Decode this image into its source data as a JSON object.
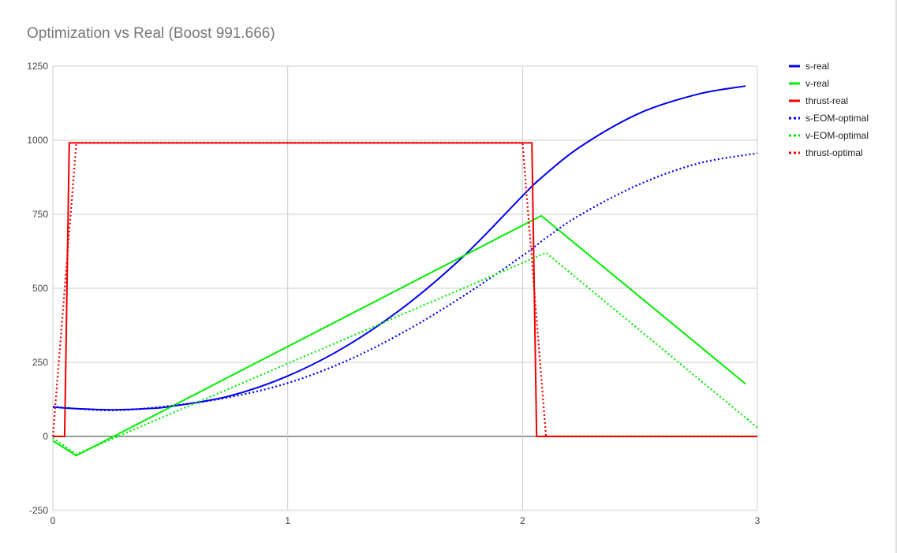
{
  "chart_data": {
    "type": "line",
    "title": "Optimization vs Real (Boost 991.666)",
    "xlabel": "",
    "ylabel": "",
    "xlim": [
      0,
      3
    ],
    "ylim": [
      -250,
      1250
    ],
    "xticks": [
      0,
      1,
      2,
      3
    ],
    "yticks": [
      -250,
      0,
      250,
      500,
      750,
      1000,
      1250
    ],
    "grid": true,
    "legend_position": "right",
    "series": [
      {
        "name": "s-real",
        "color": "#0000ee",
        "style": "solid",
        "x": [
          0,
          0.1,
          0.25,
          0.4,
          0.5,
          0.75,
          1.0,
          1.25,
          1.5,
          1.75,
          2.0,
          2.08,
          2.25,
          2.5,
          2.75,
          2.95
        ],
        "y": [
          99,
          94,
          90,
          94,
          101,
          136,
          204,
          305,
          440,
          609,
          812,
          873,
          980,
          1092,
          1156,
          1183
        ]
      },
      {
        "name": "v-real",
        "color": "#00ee00",
        "style": "solid",
        "x": [
          0,
          0.1,
          2.08,
          2.95
        ],
        "y": [
          -15,
          -65,
          745,
          177
        ]
      },
      {
        "name": "thrust-real",
        "color": "#ee0000",
        "style": "solid",
        "x": [
          0,
          0.05,
          0.07,
          2.04,
          2.06,
          3.0
        ],
        "y": [
          0,
          0,
          991,
          991,
          0,
          0
        ]
      },
      {
        "name": "s-EOM-optimal",
        "color": "#0000ee",
        "style": "dotted",
        "x": [
          0,
          0.25,
          0.5,
          0.75,
          1.0,
          1.25,
          1.5,
          1.75,
          2.0,
          2.1,
          2.25,
          2.5,
          2.75,
          3.0
        ],
        "y": [
          100,
          88,
          103,
          132,
          180,
          255,
          355,
          475,
          610,
          670,
          750,
          852,
          922,
          956
        ]
      },
      {
        "name": "v-EOM-optimal",
        "color": "#00ee00",
        "style": "dotted",
        "x": [
          0,
          0.1,
          2.1,
          3.0
        ],
        "y": [
          -5,
          -60,
          620,
          30
        ]
      },
      {
        "name": "thrust-optimal",
        "color": "#ee0000",
        "style": "dotted",
        "x": [
          0,
          0.1,
          2.0,
          2.1,
          3.0
        ],
        "y": [
          0,
          991,
          991,
          0,
          0
        ]
      }
    ]
  }
}
